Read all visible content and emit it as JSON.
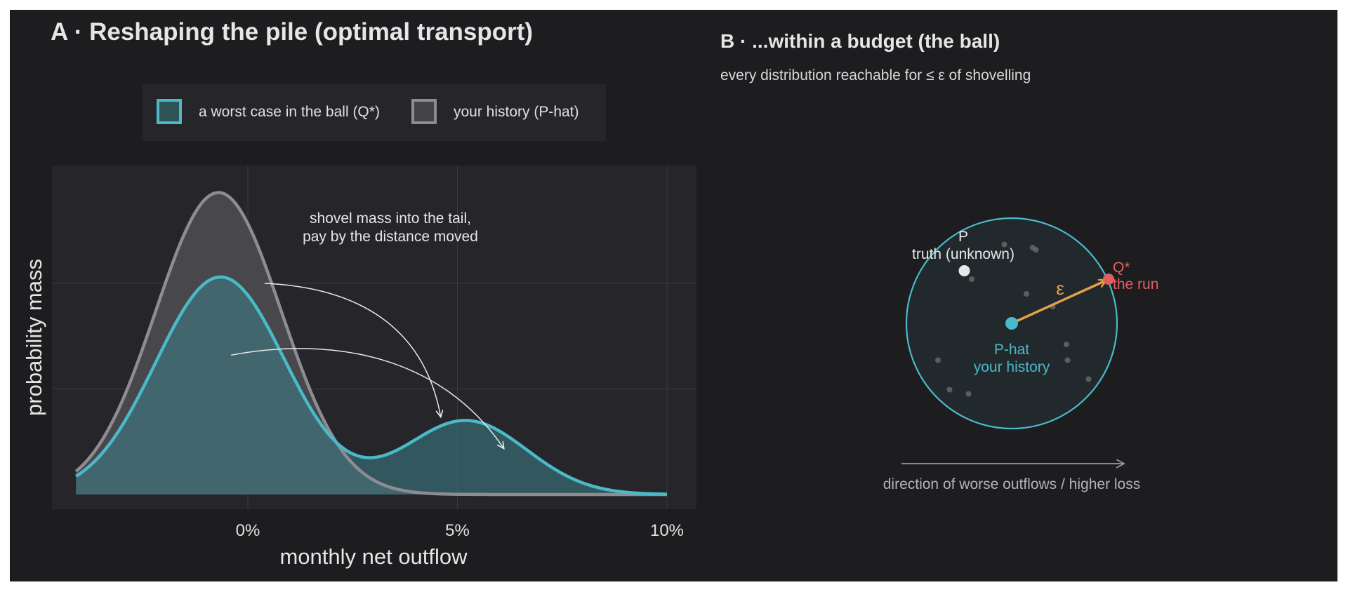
{
  "panel_a": {
    "title": "A · Reshaping the pile (optimal transport)",
    "annotation_line1": "shovel mass into the tail,",
    "annotation_line2": "pay by the distance moved"
  },
  "panel_b": {
    "title": "B · ...within a budget (the ball)",
    "subtitle": "every distribution reachable for ≤ ε of shovelling",
    "truth_symbol": "P",
    "truth_label": "truth (unknown)",
    "center_symbol": "P-hat",
    "center_label": "your history",
    "worst_symbol": "Q*",
    "worst_label": "the run",
    "radius_label": "ε",
    "direction_label": "direction of worse outflows / higher loss"
  },
  "colors": {
    "teal": "#4ab9c8",
    "gray": "#8d8d91",
    "orange": "#e3a04a",
    "red": "#e06060",
    "panel_bg": "#26262a",
    "page_bg": "#1d1d20"
  },
  "chart_data": [
    {
      "type": "area",
      "title": "A · Reshaping the pile (optimal transport)",
      "xlabel": "monthly net outflow",
      "ylabel": "probability mass",
      "xlim": [
        -4.1,
        10.4
      ],
      "ylim": [
        0,
        1.48
      ],
      "x_ticks": [
        0,
        5,
        10
      ],
      "x_tick_labels": [
        "0%",
        "5%",
        "10%"
      ],
      "y_ticks": [
        0,
        0.5,
        1.0
      ],
      "grid": true,
      "legend_position": "top",
      "series": [
        {
          "name": "a worst case in the ball  (Q*)",
          "components": [
            {
              "mean": -0.65,
              "sd": 1.55,
              "peak": 1.03
            },
            {
              "mean": 5.2,
              "sd": 1.45,
              "peak": 0.35
            }
          ]
        },
        {
          "name": "your history  (P-hat)",
          "components": [
            {
              "mean": -0.7,
              "sd": 1.5,
              "peak": 1.43
            }
          ]
        }
      ],
      "arrows": [
        {
          "from": [
            0.4,
            1.0
          ],
          "to": [
            4.6,
            0.37
          ]
        },
        {
          "from": [
            -0.4,
            0.66
          ],
          "to": [
            6.1,
            0.22
          ]
        }
      ]
    },
    {
      "type": "scatter",
      "title": "B · ...within a budget (the ball)",
      "xlim": [
        -1.2,
        1.2
      ],
      "ylim": [
        -1.2,
        1.2
      ],
      "ball_radius": 1.0,
      "center": [
        0,
        0
      ],
      "truth_point": [
        -0.45,
        0.5
      ],
      "worst_point": [
        0.92,
        0.42
      ],
      "samples": [
        [
          -0.07,
          0.75
        ],
        [
          0.2,
          0.72
        ],
        [
          0.23,
          0.7
        ],
        [
          -0.38,
          0.42
        ],
        [
          0.14,
          0.28
        ],
        [
          0.39,
          0.16
        ],
        [
          0.52,
          -0.2
        ],
        [
          0.53,
          -0.35
        ],
        [
          -0.7,
          -0.35
        ],
        [
          -0.59,
          -0.63
        ],
        [
          -0.41,
          -0.67
        ],
        [
          0.73,
          -0.53
        ]
      ]
    }
  ]
}
